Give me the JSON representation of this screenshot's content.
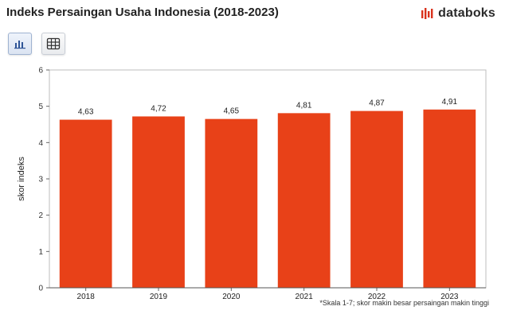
{
  "header": {
    "title": "Indeks Persaingan Usaha Indonesia (2018-2023)",
    "brand": "databoks"
  },
  "toolbar": {
    "chart_view_icon": "bar-chart-icon",
    "table_view_icon": "table-grid-icon"
  },
  "footnote": "*Skala 1-7; skor makin besar persaingan makin tinggi",
  "colors": {
    "bar": "#E84118",
    "brand_accent": "#D9321C",
    "axis": "#666666",
    "gridline": "#e6e6e6"
  },
  "chart_data": {
    "type": "bar",
    "title": "Indeks Persaingan Usaha Indonesia (2018-2023)",
    "xlabel": "",
    "ylabel": "skor indeks",
    "categories": [
      "2018",
      "2019",
      "2020",
      "2021",
      "2022",
      "2023"
    ],
    "values": [
      4.63,
      4.72,
      4.65,
      4.81,
      4.87,
      4.91
    ],
    "value_labels": [
      "4,63",
      "4,72",
      "4,65",
      "4,81",
      "4,87",
      "4,91"
    ],
    "ylim": [
      0,
      6
    ],
    "yticks": [
      "0",
      "1",
      "2",
      "3",
      "4",
      "5",
      "6"
    ],
    "grid": false,
    "legend": "none"
  }
}
